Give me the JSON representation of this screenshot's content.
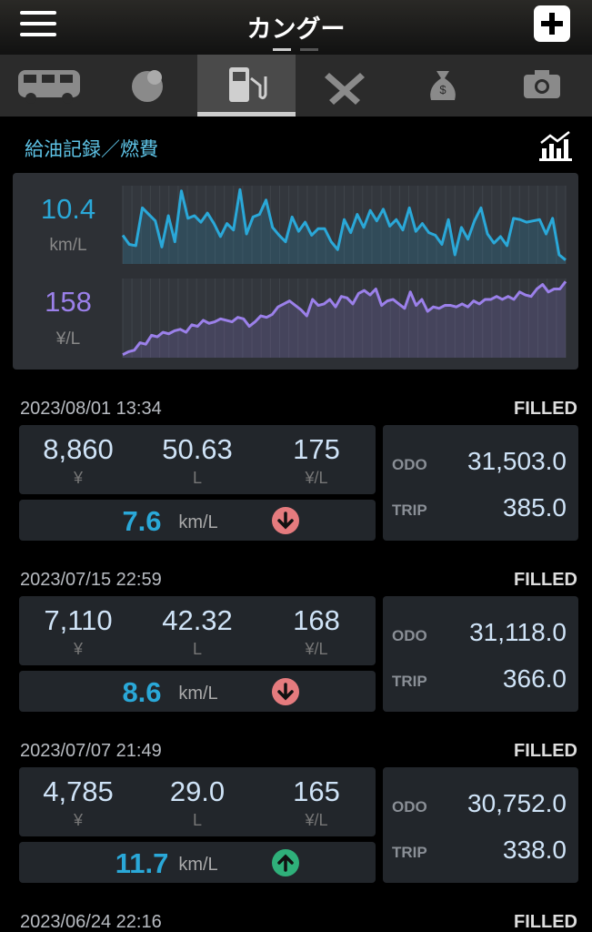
{
  "header": {
    "title": "カングー"
  },
  "section": {
    "title": "給油記録／燃費"
  },
  "summary": {
    "efficiency": "10.4",
    "efficiency_unit": "km/L",
    "price": "158",
    "price_unit": "¥/L"
  },
  "efficiency_chart": {
    "values": [
      9.5,
      8.8,
      8.7,
      11.6,
      11.1,
      10.6,
      8.6,
      11.0,
      9.0,
      12.9,
      10.8,
      11.0,
      10.5,
      11.2,
      10.4,
      9.4,
      10.4,
      9.9,
      13.0,
      9.6,
      10.9,
      11.1,
      12.2,
      10.1,
      9.5,
      9.0,
      10.9,
      9.8,
      10.5,
      9.5,
      10.0,
      10.0,
      9.0,
      8.4,
      10.7,
      9.7,
      11.1,
      10.1,
      11.4,
      10.6,
      11.5,
      10.2,
      10.7,
      9.9,
      11.6,
      9.8,
      10.4,
      9.7,
      9.5,
      8.8,
      10.7,
      8.0,
      10.1,
      9.2,
      10.6,
      11.6,
      9.6,
      8.9,
      9.4,
      8.7,
      10.8,
      10.7,
      10.5,
      10.6,
      10.7,
      9.6,
      10.8,
      8.0,
      7.6
    ],
    "ylim": [
      7.3,
      13.3
    ],
    "color": "#2aa8d8"
  },
  "price_chart": {
    "values": [
      126,
      128,
      129,
      134,
      133,
      139,
      138,
      141,
      140,
      142,
      143,
      141,
      146,
      145,
      149,
      147,
      148,
      150,
      149,
      148,
      151,
      150,
      145,
      148,
      152,
      151,
      153,
      158,
      160,
      162,
      159,
      156,
      152,
      163,
      159,
      160,
      163,
      158,
      165,
      164,
      160,
      167,
      169,
      166,
      170,
      159,
      162,
      163,
      160,
      157,
      168,
      159,
      163,
      155,
      158,
      157,
      159,
      159,
      158,
      160,
      158,
      162,
      160,
      163,
      163,
      165,
      163,
      165,
      163,
      168,
      166,
      165,
      170,
      173,
      168,
      170,
      170,
      175
    ],
    "ylim": [
      124,
      177
    ],
    "color": "#9b80ea"
  },
  "records": [
    {
      "datetime": "2023/08/01 13:34",
      "status": "FILLED",
      "cost": "8,860",
      "cost_unit": "¥",
      "liters": "50.63",
      "liters_unit": "L",
      "price": "175",
      "price_unit": "¥/L",
      "efficiency": "7.6",
      "efficiency_unit": "km/L",
      "trend": "down",
      "odo_label": "ODO",
      "odo": "31,503.0",
      "trip_label": "TRIP",
      "trip": "385.0"
    },
    {
      "datetime": "2023/07/15 22:59",
      "status": "FILLED",
      "cost": "7,110",
      "cost_unit": "¥",
      "liters": "42.32",
      "liters_unit": "L",
      "price": "168",
      "price_unit": "¥/L",
      "efficiency": "8.6",
      "efficiency_unit": "km/L",
      "trend": "down",
      "odo_label": "ODO",
      "odo": "31,118.0",
      "trip_label": "TRIP",
      "trip": "366.0"
    },
    {
      "datetime": "2023/07/07 21:49",
      "status": "FILLED",
      "cost": "4,785",
      "cost_unit": "¥",
      "liters": "29.0",
      "liters_unit": "L",
      "price": "165",
      "price_unit": "¥/L",
      "efficiency": "11.7",
      "efficiency_unit": "km/L",
      "trend": "up",
      "odo_label": "ODO",
      "odo": "30,752.0",
      "trip_label": "TRIP",
      "trip": "338.0"
    },
    {
      "datetime": "2023/06/24 22:16",
      "status": "FILLED"
    }
  ]
}
